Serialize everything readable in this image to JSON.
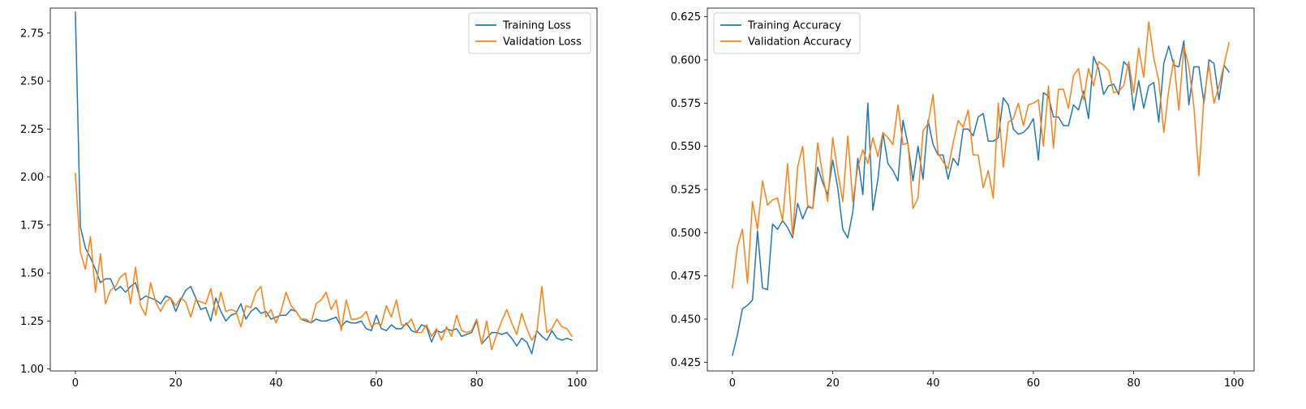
{
  "chart_data": [
    {
      "type": "line",
      "title": "",
      "xlabel": "",
      "ylabel": "",
      "xlim": [
        -5,
        104
      ],
      "ylim": [
        0.99,
        2.88
      ],
      "x_ticks": [
        0,
        20,
        40,
        60,
        80,
        100
      ],
      "x_tick_labels": [
        "0",
        "20",
        "40",
        "60",
        "80",
        "100"
      ],
      "y_ticks": [
        1.0,
        1.25,
        1.5,
        1.75,
        2.0,
        2.25,
        2.5,
        2.75
      ],
      "y_tick_labels": [
        "1.00",
        "1.25",
        "1.50",
        "1.75",
        "2.00",
        "2.25",
        "2.50",
        "2.75"
      ],
      "grid": false,
      "legend_position": "top-right",
      "colors": [
        "#1f77b4",
        "#ff7f0e"
      ],
      "x": [
        0,
        1,
        2,
        3,
        4,
        5,
        6,
        7,
        8,
        9,
        10,
        11,
        12,
        13,
        14,
        15,
        16,
        17,
        18,
        19,
        20,
        21,
        22,
        23,
        24,
        25,
        26,
        27,
        28,
        29,
        30,
        31,
        32,
        33,
        34,
        35,
        36,
        37,
        38,
        39,
        40,
        41,
        42,
        43,
        44,
        45,
        46,
        47,
        48,
        49,
        50,
        51,
        52,
        53,
        54,
        55,
        56,
        57,
        58,
        59,
        60,
        61,
        62,
        63,
        64,
        65,
        66,
        67,
        68,
        69,
        70,
        71,
        72,
        73,
        74,
        75,
        76,
        77,
        78,
        79,
        80,
        81,
        82,
        83,
        84,
        85,
        86,
        87,
        88,
        89,
        90,
        91,
        92,
        93,
        94,
        95,
        96,
        97,
        98,
        99
      ],
      "series": [
        {
          "name": "Training Loss",
          "values": [
            2.86,
            1.74,
            1.63,
            1.58,
            1.52,
            1.45,
            1.47,
            1.47,
            1.41,
            1.43,
            1.4,
            1.43,
            1.45,
            1.36,
            1.38,
            1.37,
            1.36,
            1.34,
            1.38,
            1.37,
            1.3,
            1.36,
            1.41,
            1.43,
            1.37,
            1.31,
            1.32,
            1.25,
            1.37,
            1.3,
            1.25,
            1.28,
            1.29,
            1.34,
            1.26,
            1.3,
            1.32,
            1.29,
            1.3,
            1.26,
            1.27,
            1.28,
            1.28,
            1.31,
            1.3,
            1.26,
            1.25,
            1.24,
            1.26,
            1.25,
            1.25,
            1.26,
            1.27,
            1.22,
            1.25,
            1.24,
            1.24,
            1.25,
            1.21,
            1.2,
            1.28,
            1.21,
            1.2,
            1.23,
            1.21,
            1.21,
            1.24,
            1.2,
            1.19,
            1.23,
            1.22,
            1.14,
            1.2,
            1.19,
            1.21,
            1.2,
            1.21,
            1.17,
            1.18,
            1.19,
            1.25,
            1.13,
            1.16,
            1.19,
            1.19,
            1.18,
            1.19,
            1.16,
            1.12,
            1.16,
            1.14,
            1.08,
            1.2,
            1.17,
            1.15,
            1.2,
            1.16,
            1.15,
            1.16,
            1.15
          ]
        },
        {
          "name": "Validation Loss",
          "values": [
            2.02,
            1.61,
            1.52,
            1.69,
            1.4,
            1.6,
            1.34,
            1.41,
            1.43,
            1.48,
            1.5,
            1.34,
            1.53,
            1.33,
            1.28,
            1.45,
            1.35,
            1.3,
            1.35,
            1.37,
            1.33,
            1.37,
            1.35,
            1.27,
            1.36,
            1.35,
            1.34,
            1.42,
            1.28,
            1.4,
            1.3,
            1.31,
            1.3,
            1.22,
            1.33,
            1.32,
            1.4,
            1.43,
            1.27,
            1.31,
            1.24,
            1.3,
            1.4,
            1.33,
            1.3,
            1.26,
            1.26,
            1.24,
            1.34,
            1.36,
            1.4,
            1.31,
            1.36,
            1.2,
            1.36,
            1.26,
            1.26,
            1.27,
            1.3,
            1.22,
            1.24,
            1.23,
            1.33,
            1.27,
            1.36,
            1.23,
            1.23,
            1.26,
            1.19,
            1.19,
            1.23,
            1.17,
            1.21,
            1.15,
            1.22,
            1.17,
            1.28,
            1.2,
            1.19,
            1.2,
            1.26,
            1.13,
            1.25,
            1.1,
            1.18,
            1.25,
            1.31,
            1.24,
            1.18,
            1.29,
            1.21,
            1.15,
            1.19,
            1.43,
            1.19,
            1.21,
            1.26,
            1.22,
            1.21,
            1.17
          ]
        }
      ]
    },
    {
      "type": "line",
      "title": "",
      "xlabel": "",
      "ylabel": "",
      "xlim": [
        -5,
        104
      ],
      "ylim": [
        0.42,
        0.63
      ],
      "x_ticks": [
        0,
        20,
        40,
        60,
        80,
        100
      ],
      "x_tick_labels": [
        "0",
        "20",
        "40",
        "60",
        "80",
        "100"
      ],
      "y_ticks": [
        0.425,
        0.45,
        0.475,
        0.5,
        0.525,
        0.55,
        0.575,
        0.6,
        0.625
      ],
      "y_tick_labels": [
        "0.425",
        "0.450",
        "0.475",
        "0.500",
        "0.525",
        "0.550",
        "0.575",
        "0.600",
        "0.625"
      ],
      "grid": false,
      "legend_position": "top-left",
      "colors": [
        "#1f77b4",
        "#ff7f0e"
      ],
      "x": [
        0,
        1,
        2,
        3,
        4,
        5,
        6,
        7,
        8,
        9,
        10,
        11,
        12,
        13,
        14,
        15,
        16,
        17,
        18,
        19,
        20,
        21,
        22,
        23,
        24,
        25,
        26,
        27,
        28,
        29,
        30,
        31,
        32,
        33,
        34,
        35,
        36,
        37,
        38,
        39,
        40,
        41,
        42,
        43,
        44,
        45,
        46,
        47,
        48,
        49,
        50,
        51,
        52,
        53,
        54,
        55,
        56,
        57,
        58,
        59,
        60,
        61,
        62,
        63,
        64,
        65,
        66,
        67,
        68,
        69,
        70,
        71,
        72,
        73,
        74,
        75,
        76,
        77,
        78,
        79,
        80,
        81,
        82,
        83,
        84,
        85,
        86,
        87,
        88,
        89,
        90,
        91,
        92,
        93,
        94,
        95,
        96,
        97,
        98,
        99
      ],
      "series": [
        {
          "name": "Training Accuracy",
          "values": [
            0.429,
            0.441,
            0.456,
            0.458,
            0.461,
            0.501,
            0.468,
            0.467,
            0.505,
            0.502,
            0.507,
            0.503,
            0.497,
            0.517,
            0.508,
            0.515,
            0.514,
            0.538,
            0.529,
            0.522,
            0.542,
            0.526,
            0.502,
            0.497,
            0.512,
            0.543,
            0.522,
            0.575,
            0.513,
            0.531,
            0.558,
            0.54,
            0.536,
            0.53,
            0.565,
            0.551,
            0.53,
            0.55,
            0.531,
            0.565,
            0.551,
            0.545,
            0.545,
            0.531,
            0.543,
            0.539,
            0.56,
            0.56,
            0.556,
            0.567,
            0.569,
            0.553,
            0.553,
            0.555,
            0.578,
            0.574,
            0.56,
            0.557,
            0.558,
            0.561,
            0.566,
            0.542,
            0.581,
            0.579,
            0.567,
            0.567,
            0.562,
            0.562,
            0.574,
            0.571,
            0.582,
            0.566,
            0.602,
            0.595,
            0.58,
            0.585,
            0.586,
            0.58,
            0.599,
            0.596,
            0.571,
            0.588,
            0.572,
            0.585,
            0.587,
            0.564,
            0.598,
            0.608,
            0.597,
            0.596,
            0.611,
            0.574,
            0.596,
            0.596,
            0.575,
            0.6,
            0.598,
            0.577,
            0.597,
            0.593
          ]
        },
        {
          "name": "Validation Accuracy",
          "values": [
            0.468,
            0.492,
            0.502,
            0.471,
            0.518,
            0.502,
            0.53,
            0.516,
            0.519,
            0.52,
            0.507,
            0.54,
            0.498,
            0.538,
            0.55,
            0.516,
            0.514,
            0.552,
            0.533,
            0.518,
            0.555,
            0.535,
            0.518,
            0.556,
            0.518,
            0.538,
            0.548,
            0.54,
            0.555,
            0.544,
            0.558,
            0.555,
            0.551,
            0.574,
            0.551,
            0.552,
            0.514,
            0.52,
            0.559,
            0.563,
            0.58,
            0.546,
            0.541,
            0.537,
            0.552,
            0.565,
            0.561,
            0.571,
            0.545,
            0.545,
            0.526,
            0.536,
            0.52,
            0.575,
            0.538,
            0.564,
            0.566,
            0.575,
            0.562,
            0.574,
            0.575,
            0.577,
            0.55,
            0.585,
            0.549,
            0.583,
            0.583,
            0.572,
            0.591,
            0.595,
            0.577,
            0.595,
            0.585,
            0.599,
            0.597,
            0.594,
            0.581,
            0.582,
            0.585,
            0.599,
            0.581,
            0.607,
            0.59,
            0.622,
            0.601,
            0.588,
            0.558,
            0.583,
            0.6,
            0.571,
            0.608,
            0.596,
            0.573,
            0.533,
            0.578,
            0.597,
            0.575,
            0.585,
            0.597,
            0.61
          ]
        }
      ]
    }
  ]
}
